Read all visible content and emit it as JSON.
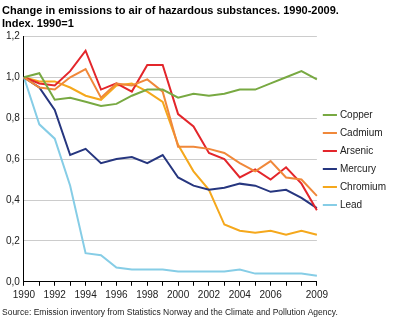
{
  "chart_data": {
    "type": "line",
    "title": "Change in emissions to air of hazardous substances. 1990-2009.",
    "subtitle": "Index. 1990=1",
    "source": "Source: Emission inventory from Statistics Norway and the Climate and Pollution Agency.",
    "categories": [
      "1990",
      null,
      "1992",
      null,
      "1994",
      null,
      "1996",
      null,
      "1998",
      null,
      "2000",
      null,
      "2002",
      null,
      "2004",
      null,
      "2006",
      null,
      null,
      "2009"
    ],
    "series": [
      {
        "name": "Copper",
        "color": "#78a942",
        "values": [
          1.0,
          1.02,
          0.89,
          0.9,
          0.88,
          0.86,
          0.87,
          0.91,
          0.94,
          0.94,
          0.9,
          0.92,
          0.91,
          0.92,
          0.94,
          0.94,
          0.97,
          1.0,
          1.03,
          0.99
        ]
      },
      {
        "name": "Cadmium",
        "color": "#f0883a",
        "values": [
          1.0,
          0.95,
          0.94,
          1.0,
          1.04,
          0.9,
          0.97,
          0.96,
          0.99,
          0.93,
          0.66,
          0.66,
          0.65,
          0.63,
          0.58,
          0.54,
          0.59,
          0.51,
          0.5,
          0.42
        ]
      },
      {
        "name": "Arsenic",
        "color": "#e3262b",
        "values": [
          1.0,
          0.97,
          0.96,
          1.03,
          1.13,
          0.94,
          0.97,
          0.93,
          1.06,
          1.06,
          0.82,
          0.76,
          0.63,
          0.6,
          0.51,
          0.55,
          0.5,
          0.56,
          0.48,
          0.35
        ]
      },
      {
        "name": "Mercury",
        "color": "#26367f",
        "values": [
          1.0,
          0.95,
          0.84,
          0.62,
          0.65,
          0.58,
          0.6,
          0.61,
          0.58,
          0.62,
          0.51,
          0.47,
          0.45,
          0.46,
          0.48,
          0.47,
          0.44,
          0.45,
          0.41,
          0.36
        ]
      },
      {
        "name": "Chromium",
        "color": "#f5a81c",
        "values": [
          1.0,
          0.98,
          0.98,
          0.95,
          0.91,
          0.89,
          0.96,
          0.97,
          0.93,
          0.88,
          0.67,
          0.54,
          0.45,
          0.28,
          0.25,
          0.24,
          0.25,
          0.23,
          0.25,
          0.23
        ]
      },
      {
        "name": "Lead",
        "color": "#86cde6",
        "values": [
          1.0,
          0.77,
          0.7,
          0.47,
          0.14,
          0.13,
          0.07,
          0.06,
          0.06,
          0.06,
          0.05,
          0.05,
          0.05,
          0.05,
          0.06,
          0.04,
          0.04,
          0.04,
          0.04,
          0.03
        ]
      }
    ],
    "ylim": [
      0,
      1.2
    ],
    "yticks": [
      {
        "value": 0,
        "label": "0,0"
      },
      {
        "value": 0.2,
        "label": "0,2"
      },
      {
        "value": 0.4,
        "label": "0,4"
      },
      {
        "value": 0.6,
        "label": "0,6"
      },
      {
        "value": 0.8,
        "label": "0,8"
      },
      {
        "value": 1.0,
        "label": "1,0"
      },
      {
        "value": 1.2,
        "label": "1,2"
      }
    ],
    "grid": true,
    "legend": "right"
  }
}
